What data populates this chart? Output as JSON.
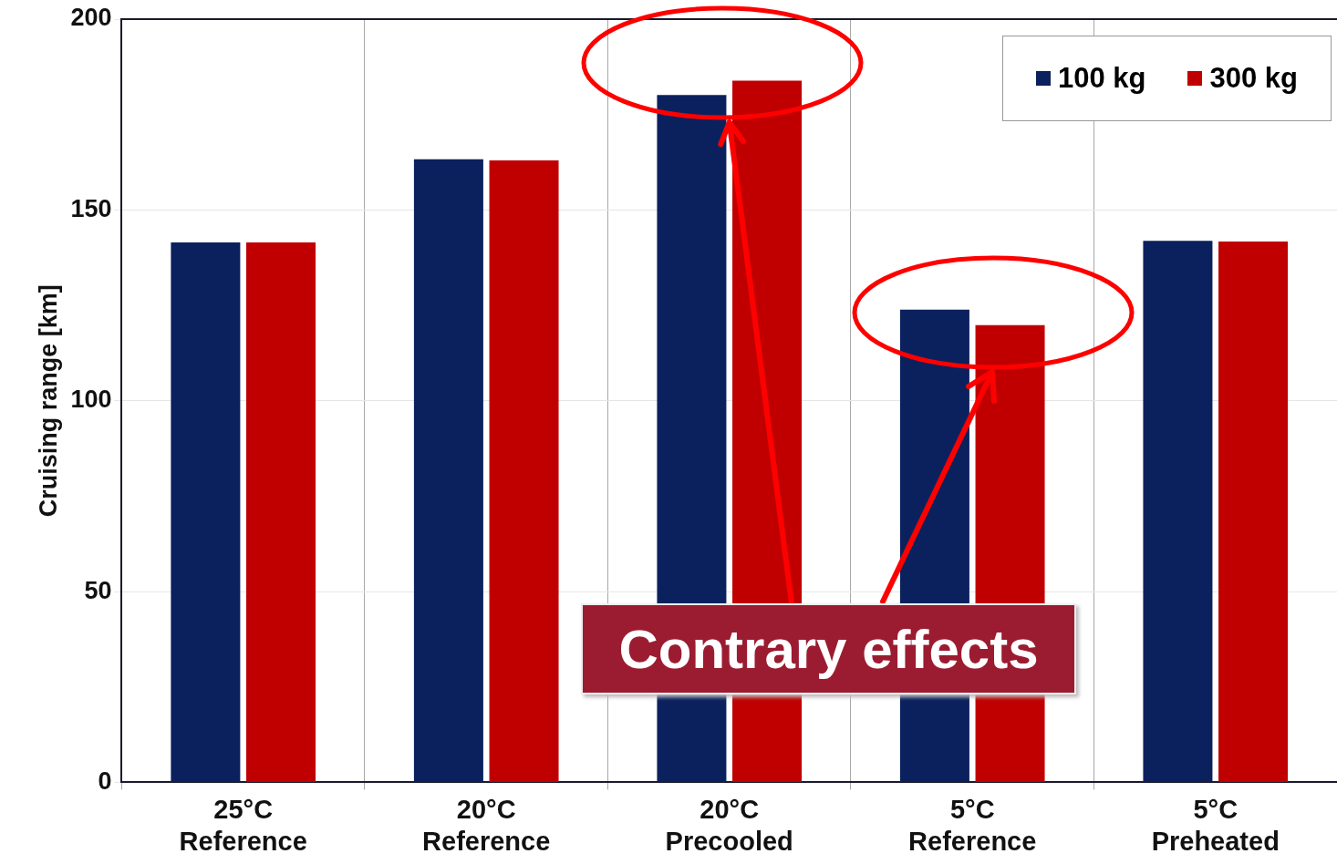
{
  "chart_data": {
    "type": "bar",
    "ylabel": "Cruising range [km]",
    "categories": [
      "25°C Reference",
      "20°C Reference",
      "20°C Precooled",
      "5°C Reference",
      "5°C Preheated"
    ],
    "series": [
      {
        "name": "100 kg",
        "color": "#0b215e",
        "values": [
          141.5,
          163.3,
          180.1,
          123.9,
          141.9
        ]
      },
      {
        "name": "300 kg",
        "color": "#c00000",
        "values": [
          141.5,
          163.0,
          183.9,
          119.8,
          141.7
        ]
      }
    ],
    "ylim": [
      0,
      200
    ],
    "yticks": [
      0,
      50,
      100,
      150,
      200
    ],
    "grid": true,
    "legend": "top right",
    "annotations": [
      {
        "text": "Contrary effects",
        "x": "20°C Precooled",
        "y": 173
      }
    ]
  }
}
